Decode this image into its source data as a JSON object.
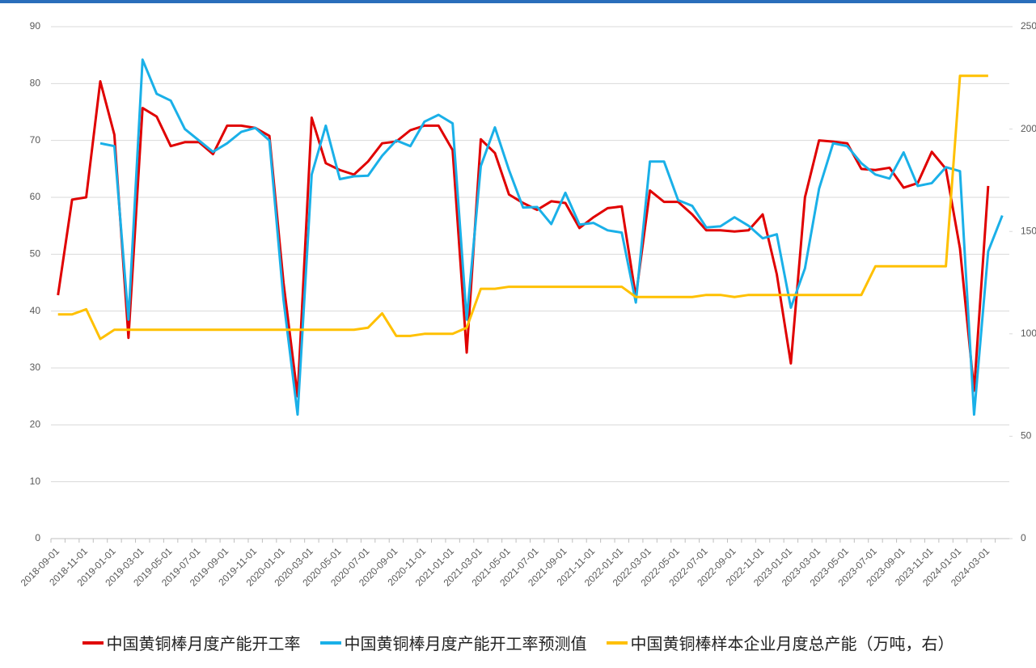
{
  "chart_data": {
    "type": "line",
    "categories": [
      "2018-09-01",
      null,
      "2018-11-01",
      null,
      "2019-01-01",
      null,
      "2019-03-01",
      null,
      "2019-05-01",
      null,
      "2019-07-01",
      null,
      "2019-09-01",
      null,
      "2019-11-01",
      null,
      "2020-01-01",
      null,
      "2020-03-01",
      null,
      "2020-05-01",
      null,
      "2020-07-01",
      null,
      "2020-09-01",
      null,
      "2020-11-01",
      null,
      "2021-01-01",
      null,
      "2021-03-01",
      null,
      "2021-05-01",
      null,
      "2021-07-01",
      null,
      "2021-09-01",
      null,
      "2021-11-01",
      null,
      "2022-01-01",
      null,
      "2022-03-01",
      null,
      "2022-05-01",
      null,
      "2022-07-01",
      null,
      "2022-09-01",
      null,
      "2022-11-01",
      null,
      "2023-01-01",
      null,
      "2023-03-01",
      null,
      "2023-05-01",
      null,
      "2023-07-01",
      null,
      "2023-09-01",
      null,
      "2023-11-01",
      null,
      "2024-01-01",
      null,
      "2024-03-01",
      null
    ],
    "series": [
      {
        "name": "中国黄铜棒月度产能开工率",
        "color": "#e00000",
        "values": [
          42.8,
          59.6,
          60,
          80.4,
          71,
          35.3,
          75.7,
          74.2,
          69,
          69.7,
          69.7,
          67.6,
          72.6,
          72.6,
          72.2,
          70.8,
          45,
          25,
          74,
          66,
          64.8,
          64,
          66.3,
          69.5,
          69.8,
          71.8,
          72.6,
          72.6,
          68.3,
          32.7,
          70.2,
          67.8,
          60.5,
          59,
          57.8,
          59.3,
          59,
          54.6,
          56.5,
          58.1,
          58.4,
          42.5,
          61.2,
          59.2,
          59.2,
          57,
          54.2,
          54.2,
          54,
          54.2,
          57,
          46.5,
          30.8,
          60,
          70,
          69.8,
          69.5,
          65,
          64.8,
          65.2,
          61.7,
          62.5,
          68,
          65,
          51,
          26,
          62,
          null
        ]
      },
      {
        "name": "中国黄铜棒月度产能开工率预测值",
        "color": "#1ab0e8",
        "values": [
          null,
          null,
          null,
          69.5,
          69,
          38.5,
          84.2,
          78.2,
          77,
          72,
          70,
          68,
          69.5,
          71.5,
          72.2,
          70,
          42,
          21.8,
          64,
          72.6,
          63.2,
          63.7,
          63.8,
          67.3,
          70,
          69,
          73.3,
          74.5,
          73,
          38.5,
          65.5,
          72.3,
          64.8,
          58.2,
          58.3,
          55.3,
          60.8,
          55.2,
          55.5,
          54.2,
          53.8,
          41.5,
          66.3,
          66.3,
          59.5,
          58.5,
          54.7,
          54.9,
          56.5,
          55,
          52.8,
          53.5,
          40.6,
          47.5,
          61.5,
          69.5,
          69,
          66,
          64,
          63.3,
          67.9,
          62,
          62.5,
          65.3,
          64.6,
          21.8,
          50.5,
          56.8
        ]
      },
      {
        "name": "中国黄铜棒样本企业月度总产能（万吨，右）",
        "color": "#ffc000",
        "axis": "y2",
        "values": [
          109.5,
          109.5,
          112,
          97.5,
          102,
          102,
          102,
          102,
          102,
          102,
          102,
          102,
          102,
          102,
          102,
          102,
          102,
          102,
          102,
          102,
          102,
          102,
          103,
          110,
          99,
          99,
          100,
          100,
          100,
          103,
          122,
          122,
          123,
          123,
          123,
          123,
          123,
          123,
          123,
          123,
          123,
          118,
          118,
          118,
          118,
          118,
          119,
          119,
          118,
          119,
          119,
          119,
          119,
          119,
          119,
          119,
          119,
          119,
          133,
          133,
          133,
          133,
          133,
          133,
          226,
          226,
          226,
          null
        ]
      }
    ],
    "ylim": [
      0,
      90
    ],
    "yticks": [
      0,
      10,
      20,
      30,
      40,
      50,
      60,
      70,
      80,
      90
    ],
    "y2lim": [
      0,
      250
    ],
    "y2ticks": [
      0,
      50,
      100,
      150,
      200,
      250
    ],
    "grid": true
  }
}
